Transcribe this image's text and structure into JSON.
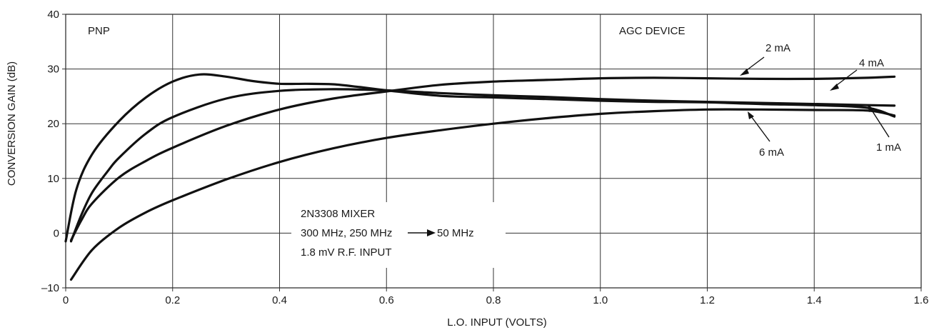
{
  "chart_data": {
    "type": "line",
    "title": "",
    "xlabel": "L.O. INPUT (VOLTS)",
    "ylabel": "CONVERSION GAIN (dB)",
    "xlim": [
      0,
      1.6
    ],
    "ylim": [
      -10,
      40
    ],
    "xticks": [
      0,
      0.2,
      0.4,
      0.6,
      0.8,
      1.0,
      1.2,
      1.4,
      1.6
    ],
    "xtick_labels": [
      "0",
      "0.2",
      "0.4",
      "0.6",
      "0.8",
      "1.0",
      "1.2",
      "1.4",
      "1.6"
    ],
    "yticks": [
      -10,
      0,
      10,
      20,
      30,
      40
    ],
    "ytick_labels": [
      "–10",
      "0",
      "10",
      "20",
      "30",
      "40"
    ],
    "grid": true,
    "annotations": {
      "pnp": "PNP",
      "agc": "AGC DEVICE",
      "mixer_line1": "2N3308 MIXER",
      "mixer_line2a": "300 MHz, 250 MHz",
      "mixer_line2b": "50 MHz",
      "mixer_line3": "1.8 mV R.F. INPUT"
    },
    "series": [
      {
        "name": "4 mA",
        "x": [
          0.01,
          0.03,
          0.05,
          0.08,
          0.1,
          0.15,
          0.2,
          0.3,
          0.4,
          0.5,
          0.6,
          0.7,
          0.8,
          0.9,
          1.0,
          1.1,
          1.2,
          1.3,
          1.4,
          1.5,
          1.55
        ],
        "y": [
          -1.5,
          3.5,
          7.5,
          11.5,
          13.8,
          18.2,
          21.2,
          24.6,
          26.0,
          26.3,
          26.1,
          25.6,
          25.2,
          24.9,
          24.5,
          24.2,
          24.0,
          23.8,
          23.6,
          23.4,
          23.3
        ]
      },
      {
        "name": "2 mA",
        "x": [
          0.01,
          0.03,
          0.05,
          0.1,
          0.15,
          0.2,
          0.3,
          0.4,
          0.5,
          0.6,
          0.7,
          0.8,
          0.9,
          1.0,
          1.1,
          1.2,
          1.3,
          1.4,
          1.5,
          1.55
        ],
        "y": [
          -1.3,
          2.5,
          5.5,
          10.2,
          13.2,
          15.6,
          19.6,
          22.6,
          24.6,
          25.9,
          27.1,
          27.7,
          28.0,
          28.3,
          28.4,
          28.3,
          28.2,
          28.2,
          28.4,
          28.6
        ]
      },
      {
        "name": "1 mA",
        "x": [
          0.0,
          0.02,
          0.05,
          0.1,
          0.15,
          0.2,
          0.25,
          0.3,
          0.35,
          0.4,
          0.45,
          0.5,
          0.55,
          0.6,
          0.7,
          0.8,
          0.9,
          1.0,
          1.1,
          1.2,
          1.3,
          1.4,
          1.5,
          1.55
        ],
        "y": [
          -1.5,
          8.0,
          14.5,
          20.5,
          24.8,
          27.7,
          29.0,
          28.6,
          27.8,
          27.3,
          27.3,
          27.2,
          26.7,
          26.1,
          25.1,
          24.8,
          24.5,
          24.2,
          24.0,
          23.9,
          23.6,
          23.4,
          22.9,
          21.3
        ]
      },
      {
        "name": "6 mA",
        "x": [
          0.01,
          0.05,
          0.1,
          0.15,
          0.2,
          0.3,
          0.4,
          0.5,
          0.6,
          0.7,
          0.8,
          0.9,
          1.0,
          1.1,
          1.2,
          1.3,
          1.4,
          1.5,
          1.55
        ],
        "y": [
          -8.5,
          -3.0,
          1.0,
          3.8,
          6.0,
          9.8,
          13.0,
          15.5,
          17.4,
          18.8,
          20.0,
          21.0,
          21.8,
          22.3,
          22.6,
          22.6,
          22.5,
          22.4,
          21.5
        ]
      }
    ]
  }
}
